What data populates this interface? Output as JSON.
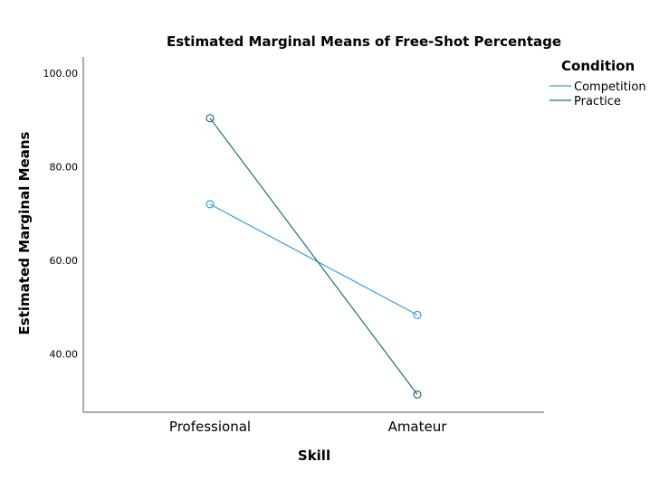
{
  "chart_data": {
    "type": "line",
    "title": "Estimated Marginal Means of Free-Shot Percentage",
    "xlabel": "Skill",
    "ylabel": "Estimated Marginal Means",
    "categories": [
      "Professional",
      "Amateur"
    ],
    "yticks": [
      "40.00",
      "60.00",
      "80.00",
      "100.00"
    ],
    "ytick_values": [
      40,
      60,
      80,
      100
    ],
    "ylim": [
      27.5,
      103.5
    ],
    "grid": false,
    "legend": {
      "title": "Condition",
      "placement": "top-right"
    },
    "series": [
      {
        "name": "Competition",
        "values": [
          72.0,
          48.3
        ],
        "color": "#3a9fd6",
        "marker": "circle-open"
      },
      {
        "name": "Practice",
        "values": [
          90.4,
          31.3
        ],
        "color": "#1f6f7a",
        "marker": "circle-open"
      }
    ]
  }
}
